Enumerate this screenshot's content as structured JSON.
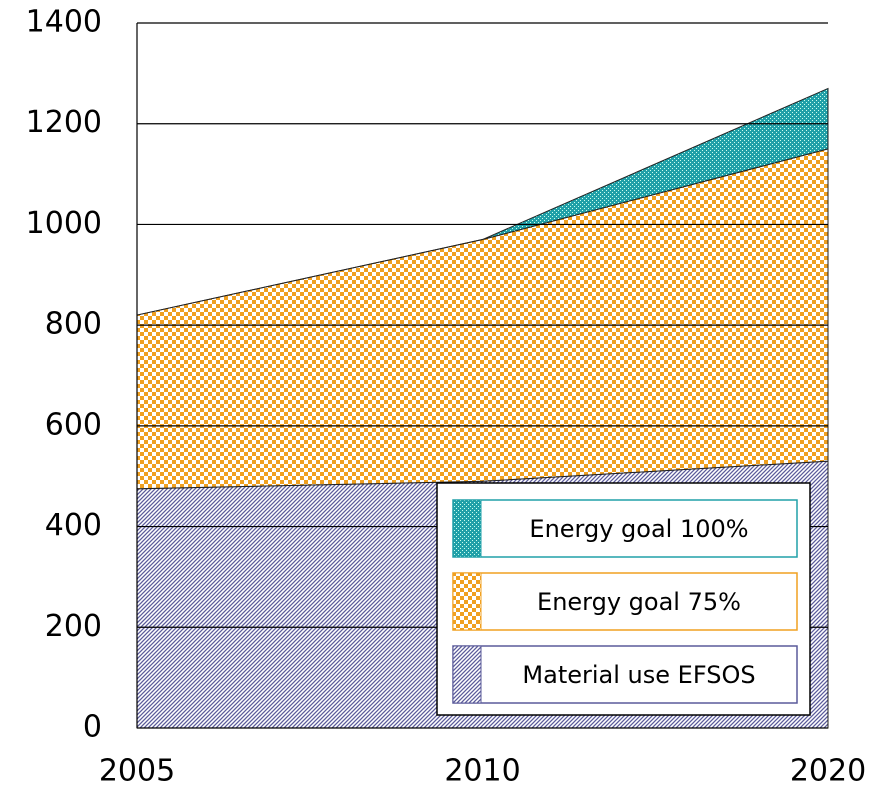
{
  "chart_data": {
    "type": "stacked_area",
    "categories": [
      "2005",
      "2010",
      "2020"
    ],
    "series": [
      {
        "name": "Material use EFSOS",
        "color": "#5a5a9a",
        "values": [
          475,
          490,
          530
        ]
      },
      {
        "name": "Energy goal 75%",
        "color": "#f0a020",
        "values": [
          345,
          480,
          620
        ]
      },
      {
        "name": "Energy goal 100%",
        "color": "#20a0a8",
        "values": [
          0,
          0,
          120
        ]
      }
    ],
    "ylim": [
      0,
      1400
    ],
    "yticks": [
      0,
      200,
      400,
      600,
      800,
      1000,
      1200,
      1400
    ],
    "grid": true
  }
}
